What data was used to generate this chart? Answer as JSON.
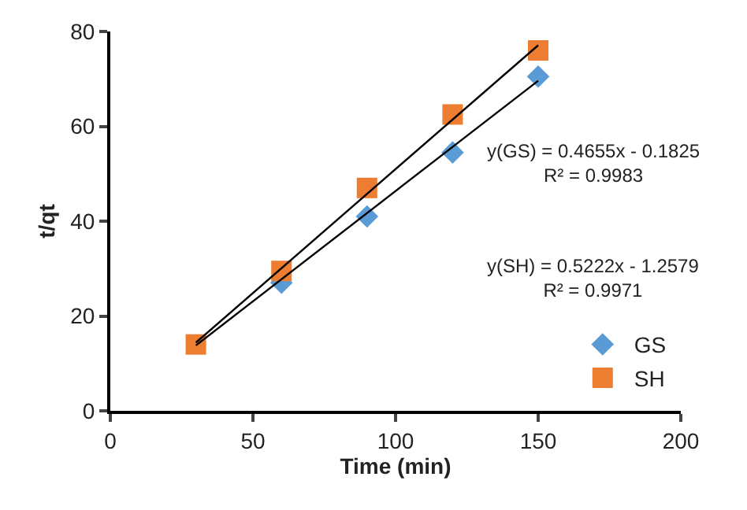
{
  "chart_data": {
    "type": "scatter",
    "xlabel": "Time (min)",
    "ylabel": "t/qt",
    "xlim": [
      0,
      200
    ],
    "xticks": [
      0,
      50,
      100,
      150,
      200
    ],
    "ylim": [
      0,
      80
    ],
    "yticks": [
      0,
      20,
      40,
      60,
      80
    ],
    "legend": "bottom right",
    "series": [
      {
        "name": "GS",
        "color": "#5b9bd5",
        "marker": "diamond",
        "x": [
          60,
          90,
          120,
          150
        ],
        "values": [
          27,
          41,
          54.5,
          70.5
        ]
      },
      {
        "name": "SH",
        "color": "#ed7d31",
        "marker": "square",
        "x": [
          30,
          60,
          90,
          120,
          150
        ],
        "values": [
          14,
          29.5,
          47,
          62.5,
          76
        ]
      },
      {
        "type": "line",
        "color": "#000000",
        "marker": "none",
        "x": [
          30,
          150
        ],
        "values": [
          13.8,
          69.6
        ]
      },
      {
        "type": "line",
        "color": "#000000",
        "marker": "none",
        "x": [
          30,
          150
        ],
        "values": [
          14.4,
          77.1
        ]
      }
    ],
    "annotations": [
      "y(GS) = 0.4655x - 0.1825\nR² = 0.9983",
      "y(SH) = 0.5222x - 1.2579\nR² = 0.9971"
    ]
  }
}
